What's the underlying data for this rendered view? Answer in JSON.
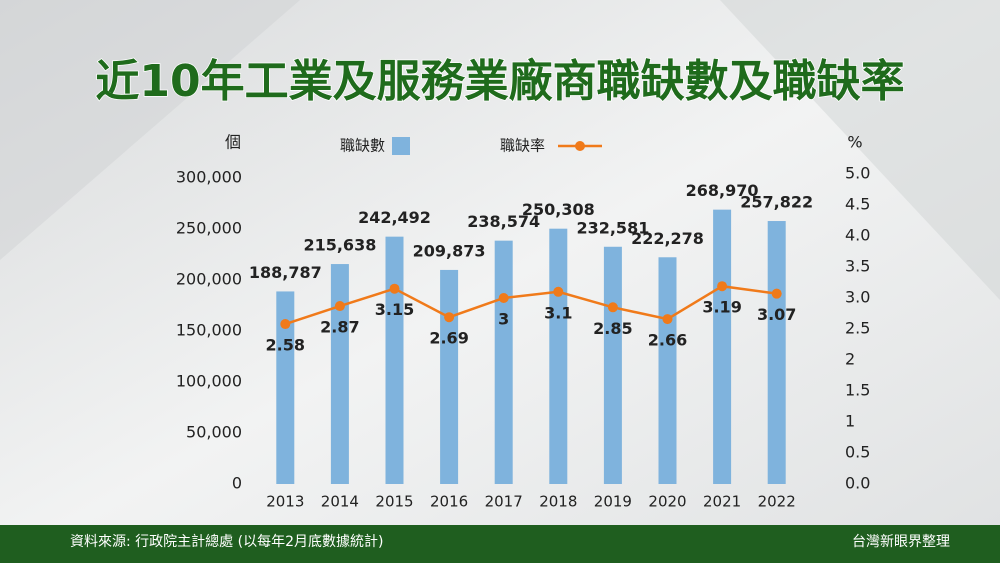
{
  "chart_data": {
    "type": "bar",
    "title": "近10年工業及服務業廠商職缺數及職缺率",
    "ylabel": "個",
    "y2label": "%",
    "categories": [
      "2013",
      "2014",
      "2015",
      "2016",
      "2017",
      "2018",
      "2019",
      "2020",
      "2021",
      "2022"
    ],
    "series": [
      {
        "name": "職缺數",
        "color": "#7fb3dd",
        "type": "bar",
        "values": [
          188787,
          215638,
          242492,
          209873,
          238574,
          250308,
          232581,
          222278,
          268970,
          257822
        ],
        "value_labels": [
          "188,787",
          "215,638",
          "242,492",
          "209,873",
          "238,574",
          "250,308",
          "232,581",
          "222,278",
          "268,970",
          "257,822"
        ]
      },
      {
        "name": "職缺率",
        "color": "#f07a1a",
        "type": "line",
        "axis": "y2",
        "values": [
          2.58,
          2.87,
          3.15,
          2.69,
          3,
          3.1,
          2.85,
          2.66,
          3.19,
          3.07
        ]
      }
    ],
    "ylim": [
      0,
      300000
    ],
    "yticks": [
      0,
      {
        "value": 50000,
        "label": "50,000"
      },
      {
        "value": 100000,
        "label": "100,000"
      },
      {
        "value": 150000,
        "label": "150,000"
      },
      {
        "value": 200000,
        "label": "200,000"
      },
      {
        "value": 250000,
        "label": "250,000"
      },
      {
        "value": 300000,
        "label": "300,000"
      }
    ],
    "y2lim": [
      0,
      5
    ],
    "y2ticks": [
      {
        "value": 0,
        "label": "0.0"
      },
      0.5,
      1,
      1.5,
      2,
      2.5,
      {
        "value": 3,
        "label": "3.0"
      },
      3.5,
      {
        "value": 4,
        "label": "4.0"
      },
      4.5,
      {
        "value": 5,
        "label": "5.0"
      }
    ],
    "source": "資料來源: 行政院主計總處 (以每年2月底數據統計)",
    "credit": "台灣新眼界整理"
  }
}
